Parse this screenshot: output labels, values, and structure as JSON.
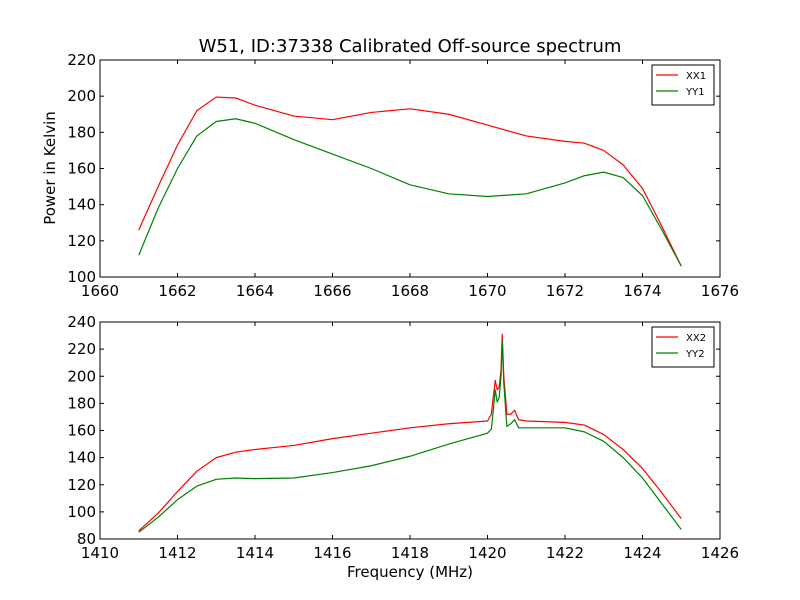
{
  "chart_data": [
    {
      "type": "line",
      "title": "W51, ID:37338 Calibrated Off-source spectrum",
      "xlabel": "",
      "ylabel": "Power in Kelvin",
      "xlim": [
        1660,
        1676
      ],
      "ylim": [
        100,
        220
      ],
      "xticks": [
        "1660",
        "1662",
        "1664",
        "1666",
        "1668",
        "1670",
        "1672",
        "1674",
        "1676"
      ],
      "yticks": [
        "100",
        "120",
        "140",
        "160",
        "180",
        "200",
        "220"
      ],
      "grid": false,
      "legend_position": "top-right",
      "series": [
        {
          "name": "XX1",
          "color": "#ff0000",
          "points": [
            [
              1661.0,
              126
            ],
            [
              1661.5,
              150
            ],
            [
              1662.0,
              173
            ],
            [
              1662.5,
              192
            ],
            [
              1663.0,
              199.5
            ],
            [
              1663.5,
              199
            ],
            [
              1664.0,
              195
            ],
            [
              1665.0,
              189
            ],
            [
              1666.0,
              187
            ],
            [
              1667.0,
              191
            ],
            [
              1668.0,
              193
            ],
            [
              1669.0,
              190
            ],
            [
              1670.0,
              184
            ],
            [
              1671.0,
              178
            ],
            [
              1672.0,
              175
            ],
            [
              1672.5,
              174
            ],
            [
              1673.0,
              170
            ],
            [
              1673.5,
              162
            ],
            [
              1674.0,
              149
            ],
            [
              1674.5,
              128
            ],
            [
              1675.0,
              106
            ]
          ]
        },
        {
          "name": "YY1",
          "color": "#008000",
          "points": [
            [
              1661.0,
              112
            ],
            [
              1661.5,
              138
            ],
            [
              1662.0,
              160
            ],
            [
              1662.5,
              178
            ],
            [
              1663.0,
              186
            ],
            [
              1663.5,
              187.5
            ],
            [
              1664.0,
              185
            ],
            [
              1665.0,
              176
            ],
            [
              1666.0,
              168
            ],
            [
              1667.0,
              160
            ],
            [
              1668.0,
              151
            ],
            [
              1669.0,
              146
            ],
            [
              1670.0,
              144.5
            ],
            [
              1671.0,
              146
            ],
            [
              1672.0,
              152
            ],
            [
              1672.5,
              156
            ],
            [
              1673.0,
              158
            ],
            [
              1673.5,
              155
            ],
            [
              1674.0,
              145
            ],
            [
              1674.5,
              126
            ],
            [
              1675.0,
              106
            ]
          ]
        }
      ]
    },
    {
      "type": "line",
      "title": "",
      "xlabel": "Frequency (MHz)",
      "ylabel": "",
      "xlim": [
        1410,
        1426
      ],
      "ylim": [
        80,
        240
      ],
      "xticks": [
        "1410",
        "1412",
        "1414",
        "1416",
        "1418",
        "1420",
        "1422",
        "1424",
        "1426"
      ],
      "yticks": [
        "80",
        "100",
        "120",
        "140",
        "160",
        "180",
        "200",
        "220",
        "240"
      ],
      "grid": false,
      "legend_position": "top-right",
      "series": [
        {
          "name": "XX2",
          "color": "#ff0000",
          "points": [
            [
              1411.0,
              86
            ],
            [
              1411.5,
              99
            ],
            [
              1412.0,
              115
            ],
            [
              1412.5,
              130
            ],
            [
              1413.0,
              140
            ],
            [
              1413.5,
              144
            ],
            [
              1414.0,
              146
            ],
            [
              1415.0,
              149
            ],
            [
              1416.0,
              154
            ],
            [
              1417.0,
              158
            ],
            [
              1418.0,
              162
            ],
            [
              1419.0,
              165
            ],
            [
              1420.0,
              167
            ],
            [
              1420.1,
              172
            ],
            [
              1420.15,
              185
            ],
            [
              1420.2,
              197
            ],
            [
              1420.25,
              190
            ],
            [
              1420.3,
              192
            ],
            [
              1420.35,
              205
            ],
            [
              1420.38,
              231
            ],
            [
              1420.42,
              200
            ],
            [
              1420.5,
              172
            ],
            [
              1420.6,
              172
            ],
            [
              1420.7,
              175
            ],
            [
              1420.8,
              168
            ],
            [
              1421.0,
              167
            ],
            [
              1422.0,
              166
            ],
            [
              1422.5,
              164
            ],
            [
              1423.0,
              157
            ],
            [
              1423.5,
              146
            ],
            [
              1424.0,
              132
            ],
            [
              1424.5,
              114
            ],
            [
              1425.0,
              95
            ]
          ]
        },
        {
          "name": "YY2",
          "color": "#008000",
          "points": [
            [
              1411.0,
              85
            ],
            [
              1411.5,
              96
            ],
            [
              1412.0,
              109
            ],
            [
              1412.5,
              119
            ],
            [
              1413.0,
              124
            ],
            [
              1413.5,
              125
            ],
            [
              1414.0,
              124.5
            ],
            [
              1415.0,
              125
            ],
            [
              1416.0,
              129
            ],
            [
              1417.0,
              134
            ],
            [
              1418.0,
              141
            ],
            [
              1419.0,
              150
            ],
            [
              1420.0,
              158
            ],
            [
              1420.1,
              161
            ],
            [
              1420.15,
              175
            ],
            [
              1420.2,
              190
            ],
            [
              1420.25,
              181
            ],
            [
              1420.3,
              184
            ],
            [
              1420.35,
              200
            ],
            [
              1420.38,
              227
            ],
            [
              1420.42,
              195
            ],
            [
              1420.5,
              163
            ],
            [
              1420.6,
              165
            ],
            [
              1420.7,
              168
            ],
            [
              1420.8,
              162
            ],
            [
              1421.0,
              162
            ],
            [
              1422.0,
              162
            ],
            [
              1422.5,
              159
            ],
            [
              1423.0,
              152
            ],
            [
              1423.5,
              140
            ],
            [
              1424.0,
              125
            ],
            [
              1424.5,
              106
            ],
            [
              1425.0,
              87
            ]
          ]
        }
      ]
    }
  ]
}
